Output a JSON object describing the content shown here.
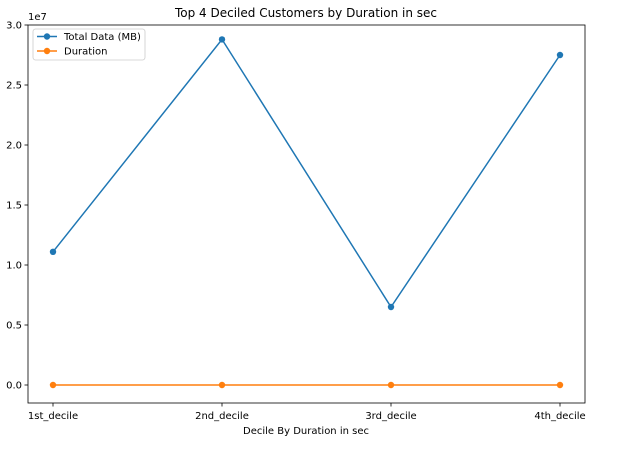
{
  "chart_data": {
    "type": "line",
    "title": "Top 4 Deciled Customers by Duration in sec",
    "xlabel": "Decile By Duration in sec",
    "ylabel": "",
    "categories": [
      "1st_decile",
      "2nd_decile",
      "3rd_decile",
      "4th_decile"
    ],
    "ylim": [
      -1500000,
      30000000
    ],
    "yticks": [
      0,
      5000000,
      10000000,
      15000000,
      20000000,
      25000000,
      30000000
    ],
    "ytick_labels": [
      "0.0",
      "0.5",
      "1.0",
      "1.5",
      "2.0",
      "2.5",
      "3.0"
    ],
    "offset_text": "1e7",
    "grid": false,
    "legend_position": "upper left",
    "series": [
      {
        "name": "Total Data (MB)",
        "color": "#1f77b4",
        "marker": "circle",
        "values": [
          11100000,
          28800000,
          6500000,
          27500000
        ]
      },
      {
        "name": "Duration",
        "color": "#ff7f0e",
        "marker": "circle",
        "values": [
          0,
          0,
          0,
          0
        ]
      }
    ]
  }
}
